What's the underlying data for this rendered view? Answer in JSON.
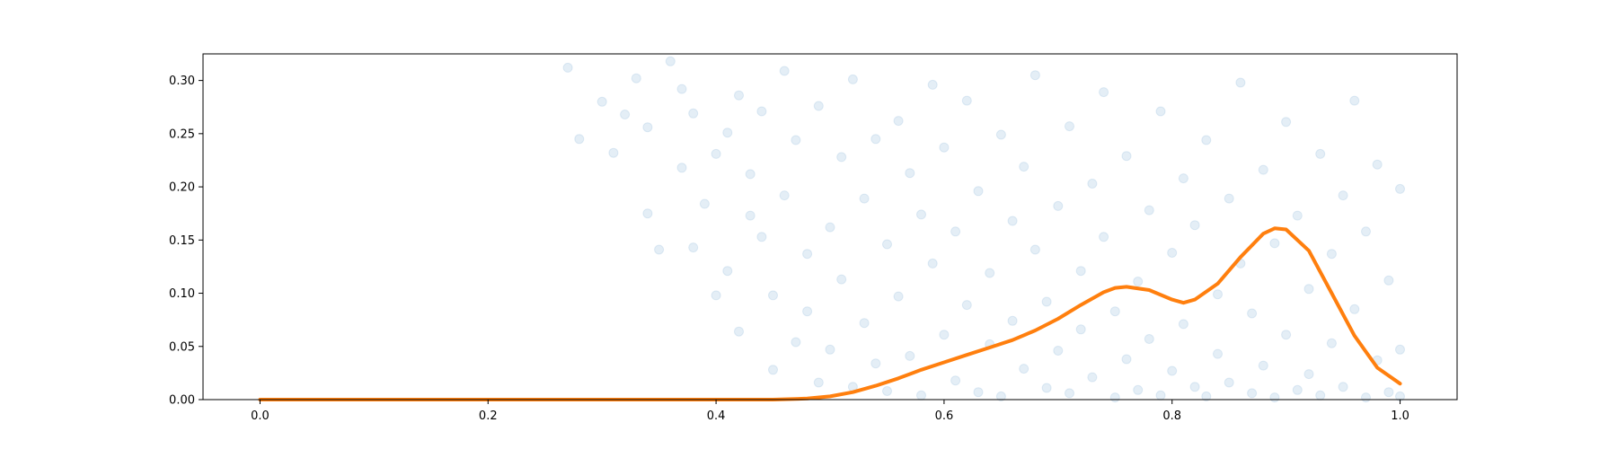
{
  "chart_data": {
    "type": "scatter",
    "title": "",
    "xlabel": "",
    "ylabel": "",
    "xlim": [
      -0.05,
      1.05
    ],
    "ylim": [
      0.0,
      0.325
    ],
    "x_ticks": [
      0.0,
      0.2,
      0.4,
      0.6,
      0.8,
      1.0
    ],
    "x_tick_labels": [
      "0.0",
      "0.2",
      "0.4",
      "0.6",
      "0.8",
      "1.0"
    ],
    "y_ticks": [
      0.0,
      0.05,
      0.1,
      0.15,
      0.2,
      0.25,
      0.3
    ],
    "y_tick_labels": [
      "0.00",
      "0.05",
      "0.10",
      "0.15",
      "0.20",
      "0.25",
      "0.30"
    ],
    "grid": false,
    "legend": "none",
    "series": [
      {
        "kind": "scatter",
        "color": "#1f77b4",
        "opacity": 0.12,
        "points": [
          [
            0.27,
            0.312
          ],
          [
            0.28,
            0.245
          ],
          [
            0.3,
            0.28
          ],
          [
            0.31,
            0.232
          ],
          [
            0.32,
            0.268
          ],
          [
            0.33,
            0.302
          ],
          [
            0.34,
            0.256
          ],
          [
            0.34,
            0.175
          ],
          [
            0.35,
            0.141
          ],
          [
            0.36,
            0.318
          ],
          [
            0.37,
            0.218
          ],
          [
            0.37,
            0.292
          ],
          [
            0.38,
            0.143
          ],
          [
            0.38,
            0.269
          ],
          [
            0.39,
            0.184
          ],
          [
            0.4,
            0.231
          ],
          [
            0.4,
            0.098
          ],
          [
            0.41,
            0.251
          ],
          [
            0.41,
            0.121
          ],
          [
            0.42,
            0.064
          ],
          [
            0.42,
            0.286
          ],
          [
            0.43,
            0.173
          ],
          [
            0.43,
            0.212
          ],
          [
            0.44,
            0.271
          ],
          [
            0.44,
            0.153
          ],
          [
            0.45,
            0.028
          ],
          [
            0.45,
            0.098
          ],
          [
            0.46,
            0.309
          ],
          [
            0.46,
            0.192
          ],
          [
            0.47,
            0.054
          ],
          [
            0.47,
            0.244
          ],
          [
            0.48,
            0.137
          ],
          [
            0.48,
            0.083
          ],
          [
            0.49,
            0.276
          ],
          [
            0.49,
            0.016
          ],
          [
            0.5,
            0.162
          ],
          [
            0.5,
            0.047
          ],
          [
            0.51,
            0.228
          ],
          [
            0.51,
            0.113
          ],
          [
            0.52,
            0.012
          ],
          [
            0.52,
            0.301
          ],
          [
            0.53,
            0.189
          ],
          [
            0.53,
            0.072
          ],
          [
            0.54,
            0.245
          ],
          [
            0.54,
            0.034
          ],
          [
            0.55,
            0.146
          ],
          [
            0.55,
            0.008
          ],
          [
            0.56,
            0.262
          ],
          [
            0.56,
            0.097
          ],
          [
            0.57,
            0.213
          ],
          [
            0.57,
            0.041
          ],
          [
            0.58,
            0.174
          ],
          [
            0.58,
            0.004
          ],
          [
            0.59,
            0.296
          ],
          [
            0.59,
            0.128
          ],
          [
            0.6,
            0.061
          ],
          [
            0.6,
            0.237
          ],
          [
            0.61,
            0.018
          ],
          [
            0.61,
            0.158
          ],
          [
            0.62,
            0.089
          ],
          [
            0.62,
            0.281
          ],
          [
            0.63,
            0.007
          ],
          [
            0.63,
            0.196
          ],
          [
            0.64,
            0.052
          ],
          [
            0.64,
            0.119
          ],
          [
            0.65,
            0.249
          ],
          [
            0.65,
            0.003
          ],
          [
            0.66,
            0.168
          ],
          [
            0.66,
            0.074
          ],
          [
            0.67,
            0.219
          ],
          [
            0.67,
            0.029
          ],
          [
            0.68,
            0.141
          ],
          [
            0.68,
            0.305
          ],
          [
            0.69,
            0.011
          ],
          [
            0.69,
            0.092
          ],
          [
            0.7,
            0.182
          ],
          [
            0.7,
            0.046
          ],
          [
            0.71,
            0.257
          ],
          [
            0.71,
            0.006
          ],
          [
            0.72,
            0.121
          ],
          [
            0.72,
            0.066
          ],
          [
            0.73,
            0.203
          ],
          [
            0.73,
            0.021
          ],
          [
            0.74,
            0.153
          ],
          [
            0.74,
            0.289
          ],
          [
            0.75,
            0.002
          ],
          [
            0.75,
            0.083
          ],
          [
            0.76,
            0.229
          ],
          [
            0.76,
            0.038
          ],
          [
            0.77,
            0.111
          ],
          [
            0.77,
            0.009
          ],
          [
            0.78,
            0.178
          ],
          [
            0.78,
            0.057
          ],
          [
            0.79,
            0.271
          ],
          [
            0.79,
            0.004
          ],
          [
            0.8,
            0.138
          ],
          [
            0.8,
            0.027
          ],
          [
            0.81,
            0.208
          ],
          [
            0.81,
            0.071
          ],
          [
            0.82,
            0.012
          ],
          [
            0.82,
            0.164
          ],
          [
            0.83,
            0.244
          ],
          [
            0.83,
            0.003
          ],
          [
            0.84,
            0.099
          ],
          [
            0.84,
            0.043
          ],
          [
            0.85,
            0.189
          ],
          [
            0.85,
            0.016
          ],
          [
            0.86,
            0.128
          ],
          [
            0.86,
            0.298
          ],
          [
            0.87,
            0.006
          ],
          [
            0.87,
            0.081
          ],
          [
            0.88,
            0.216
          ],
          [
            0.88,
            0.032
          ],
          [
            0.89,
            0.147
          ],
          [
            0.89,
            0.002
          ],
          [
            0.9,
            0.061
          ],
          [
            0.9,
            0.261
          ],
          [
            0.91,
            0.009
          ],
          [
            0.91,
            0.173
          ],
          [
            0.92,
            0.104
          ],
          [
            0.92,
            0.024
          ],
          [
            0.93,
            0.231
          ],
          [
            0.93,
            0.004
          ],
          [
            0.94,
            0.137
          ],
          [
            0.94,
            0.053
          ],
          [
            0.95,
            0.192
          ],
          [
            0.95,
            0.012
          ],
          [
            0.96,
            0.085
          ],
          [
            0.96,
            0.281
          ],
          [
            0.97,
            0.002
          ],
          [
            0.97,
            0.158
          ],
          [
            0.98,
            0.037
          ],
          [
            0.98,
            0.221
          ],
          [
            0.99,
            0.007
          ],
          [
            0.99,
            0.112
          ],
          [
            1.0,
            0.047
          ],
          [
            1.0,
            0.198
          ],
          [
            1.0,
            0.003
          ]
        ]
      },
      {
        "kind": "line",
        "color": "#ff7f0e",
        "points": [
          [
            0.0,
            0.0
          ],
          [
            0.1,
            0.0
          ],
          [
            0.2,
            0.0
          ],
          [
            0.3,
            0.0
          ],
          [
            0.4,
            0.0
          ],
          [
            0.45,
            0.0
          ],
          [
            0.48,
            0.001
          ],
          [
            0.5,
            0.003
          ],
          [
            0.52,
            0.007
          ],
          [
            0.54,
            0.013
          ],
          [
            0.56,
            0.02
          ],
          [
            0.58,
            0.028
          ],
          [
            0.6,
            0.035
          ],
          [
            0.62,
            0.042
          ],
          [
            0.64,
            0.049
          ],
          [
            0.66,
            0.056
          ],
          [
            0.68,
            0.065
          ],
          [
            0.7,
            0.076
          ],
          [
            0.72,
            0.089
          ],
          [
            0.74,
            0.101
          ],
          [
            0.75,
            0.105
          ],
          [
            0.76,
            0.106
          ],
          [
            0.78,
            0.103
          ],
          [
            0.8,
            0.094
          ],
          [
            0.81,
            0.091
          ],
          [
            0.82,
            0.094
          ],
          [
            0.84,
            0.109
          ],
          [
            0.86,
            0.134
          ],
          [
            0.88,
            0.156
          ],
          [
            0.89,
            0.161
          ],
          [
            0.9,
            0.16
          ],
          [
            0.92,
            0.14
          ],
          [
            0.94,
            0.1
          ],
          [
            0.96,
            0.06
          ],
          [
            0.98,
            0.03
          ],
          [
            1.0,
            0.015
          ]
        ]
      }
    ]
  }
}
